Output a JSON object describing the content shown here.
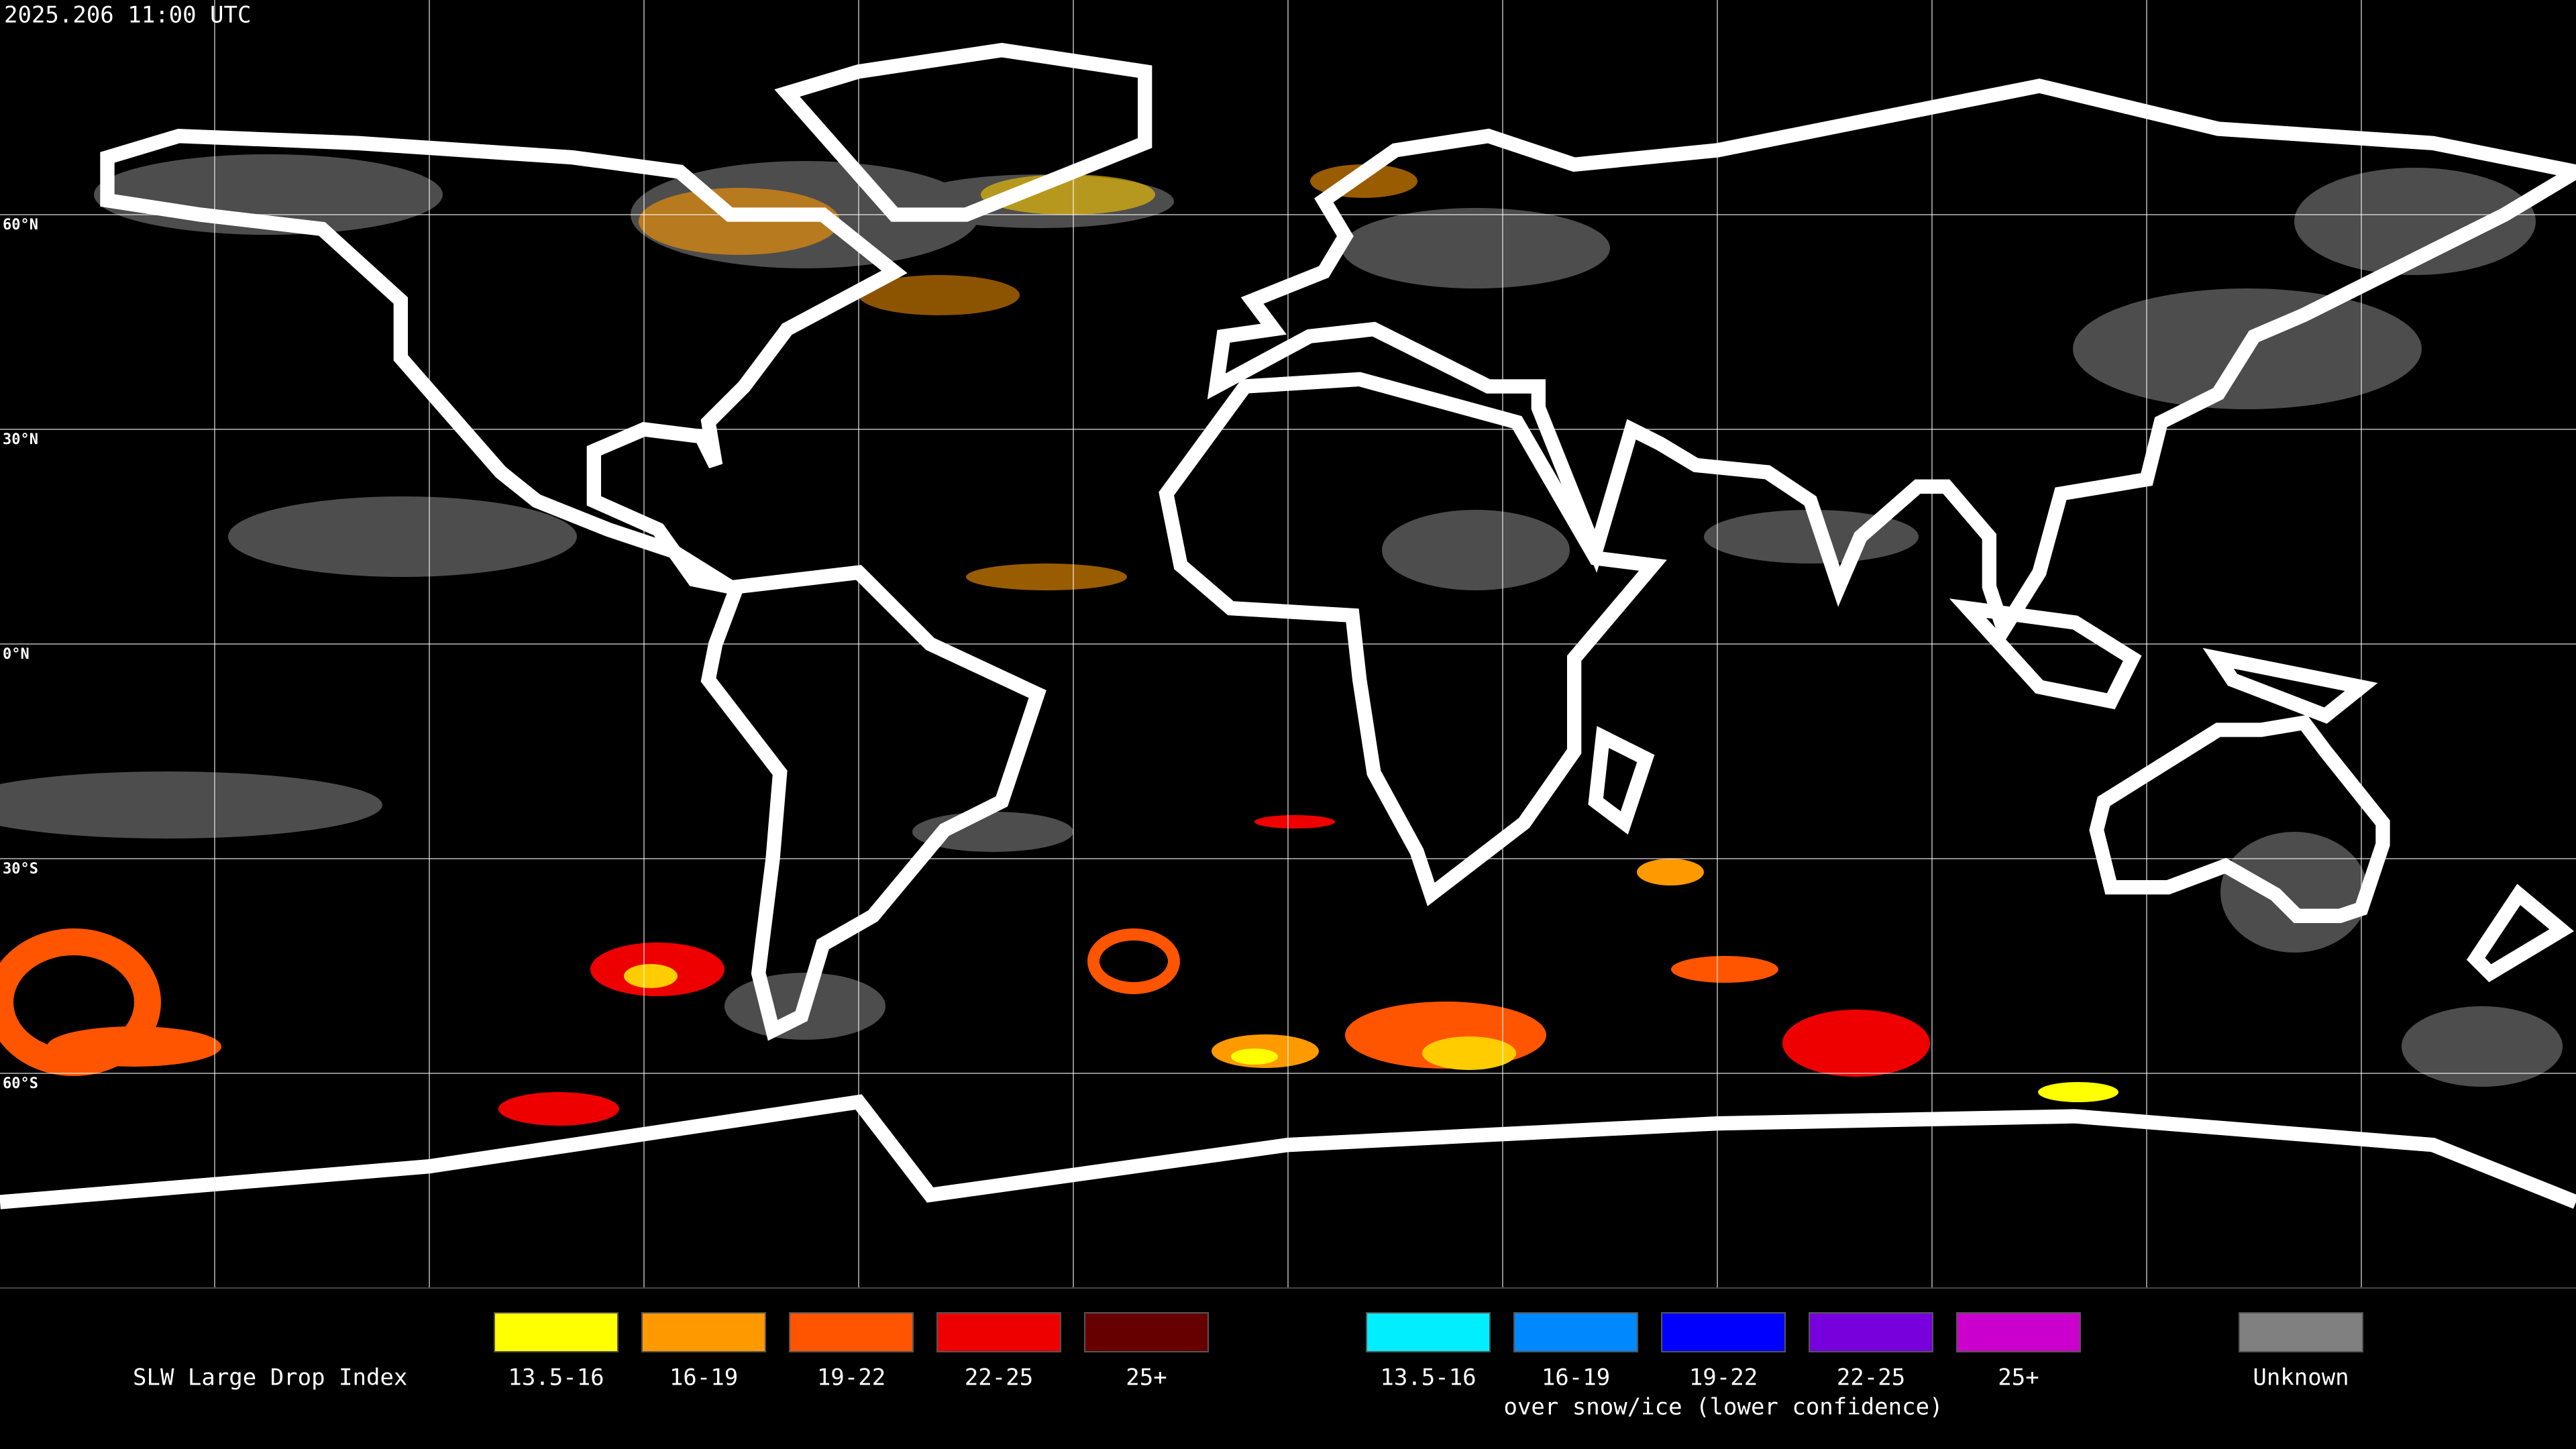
{
  "header": {
    "title": "2025.206 11:00 UTC"
  },
  "map": {
    "lat_labels": [
      "60°N",
      "30°N",
      "0°N",
      "30°S",
      "60°S"
    ]
  },
  "legend": {
    "title": "SLW Large Drop Index",
    "groups": [
      {
        "items": [
          {
            "label": "13.5-16",
            "color": "#ffff00"
          },
          {
            "label": "16-19",
            "color": "#ff9900"
          },
          {
            "label": "19-22",
            "color": "#ff5500"
          },
          {
            "label": "22-25",
            "color": "#ee0000"
          },
          {
            "label": "25+",
            "color": "#660000"
          }
        ]
      },
      {
        "items": [
          {
            "label": "13.5-16",
            "color": "#00eeff"
          },
          {
            "label": "16-19",
            "color": "#0088ff"
          },
          {
            "label": "19-22",
            "color": "#0000ff"
          },
          {
            "label": "22-25",
            "color": "#7700dd"
          },
          {
            "label": "25+",
            "color": "#cc00cc"
          }
        ],
        "caption": "over snow/ice (lower confidence)"
      }
    ],
    "unknown": {
      "label": "Unknown",
      "color": "#808080"
    }
  }
}
